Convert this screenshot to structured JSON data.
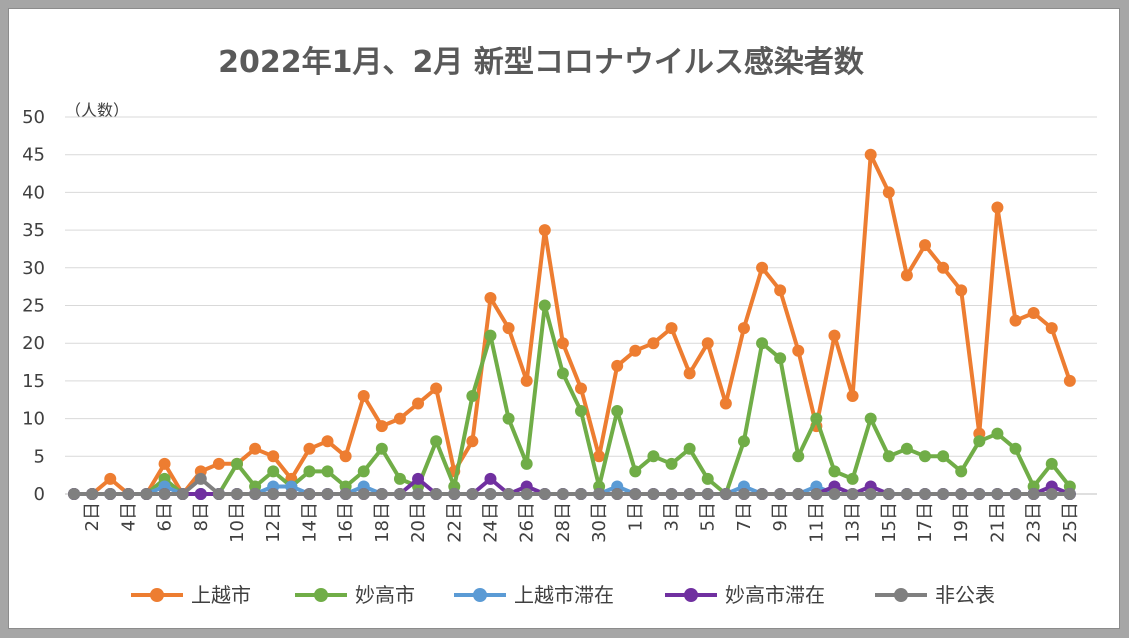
{
  "chart_data": {
    "type": "line",
    "title": "2022年1月、2月 新型コロナウイルス感染者数",
    "ylabel": "（人数）",
    "ylim": [
      0,
      50
    ],
    "yticks": [
      0,
      5,
      10,
      15,
      20,
      25,
      30,
      35,
      40,
      45,
      50
    ],
    "grid": true,
    "legend_position": "bottom",
    "categories": [
      "1日",
      "2日",
      "3日",
      "4日",
      "5日",
      "6日",
      "7日",
      "8日",
      "9日",
      "10日",
      "11日",
      "12日",
      "13日",
      "14日",
      "15日",
      "16日",
      "17日",
      "18日",
      "19日",
      "20日",
      "21日",
      "22日",
      "23日",
      "24日",
      "25日",
      "26日",
      "27日",
      "28日",
      "29日",
      "30日",
      "31日",
      "1日",
      "2日",
      "3日",
      "4日",
      "5日",
      "6日",
      "7日",
      "8日",
      "9日",
      "10日",
      "11日",
      "12日",
      "13日",
      "14日",
      "15日",
      "16日",
      "17日",
      "18日",
      "19日",
      "20日",
      "21日",
      "22日",
      "23日",
      "24日",
      "25日",
      "26日"
    ],
    "x_tick_labels": [
      "2日",
      "4日",
      "6日",
      "8日",
      "10日",
      "12日",
      "14日",
      "16日",
      "18日",
      "20日",
      "22日",
      "24日",
      "26日",
      "28日",
      "30日",
      "1日",
      "3日",
      "5日",
      "7日",
      "9日",
      "11日",
      "13日",
      "15日",
      "17日",
      "19日",
      "21日",
      "23日",
      "25日"
    ],
    "series": [
      {
        "name": "上越市",
        "color": "#ed7d31",
        "values": [
          0,
          0,
          2,
          0,
          0,
          4,
          0,
          3,
          4,
          4,
          6,
          5,
          2,
          6,
          7,
          5,
          13,
          9,
          10,
          12,
          14,
          3,
          7,
          26,
          22,
          15,
          35,
          20,
          14,
          5,
          17,
          19,
          20,
          22,
          16,
          20,
          12,
          22,
          30,
          27,
          19,
          9,
          21,
          13,
          45,
          40,
          29,
          33,
          30,
          27,
          8,
          38,
          23,
          24,
          22,
          15,
          null
        ]
      },
      {
        "name": "妙高市",
        "color": "#70ad47",
        "values": [
          0,
          0,
          0,
          0,
          0,
          2,
          0,
          0,
          0,
          4,
          1,
          3,
          1,
          3,
          3,
          1,
          3,
          6,
          2,
          1,
          7,
          1,
          13,
          21,
          10,
          4,
          25,
          16,
          11,
          1,
          11,
          3,
          5,
          4,
          6,
          2,
          0,
          7,
          20,
          18,
          5,
          10,
          3,
          2,
          10,
          5,
          6,
          5,
          5,
          3,
          7,
          8,
          6,
          1,
          4,
          1,
          null
        ]
      },
      {
        "name": "上越市滞在",
        "color": "#5b9bd5",
        "values": [
          0,
          0,
          0,
          0,
          0,
          1,
          0,
          0,
          0,
          0,
          0,
          1,
          1,
          0,
          0,
          0,
          1,
          0,
          0,
          0,
          0,
          0,
          0,
          0,
          0,
          0,
          0,
          0,
          0,
          0,
          1,
          0,
          0,
          0,
          0,
          0,
          0,
          1,
          0,
          0,
          0,
          1,
          0,
          0,
          0,
          0,
          0,
          0,
          0,
          0,
          0,
          0,
          0,
          0,
          0,
          0,
          null
        ]
      },
      {
        "name": "妙高市滞在",
        "color": "#7030a0",
        "values": [
          0,
          0,
          0,
          0,
          0,
          0,
          0,
          0,
          0,
          0,
          0,
          0,
          0,
          0,
          0,
          0,
          0,
          0,
          0,
          2,
          0,
          0,
          0,
          2,
          0,
          1,
          0,
          0,
          0,
          0,
          0,
          0,
          0,
          0,
          0,
          0,
          0,
          0,
          0,
          0,
          0,
          0,
          1,
          0,
          1,
          0,
          0,
          0,
          0,
          0,
          0,
          0,
          0,
          0,
          1,
          0,
          null
        ]
      },
      {
        "name": "非公表",
        "color": "#7f7f7f",
        "values": [
          0,
          0,
          0,
          0,
          0,
          0,
          0,
          2,
          0,
          0,
          0,
          0,
          0,
          0,
          0,
          0,
          0,
          0,
          0,
          0,
          0,
          0,
          0,
          0,
          0,
          0,
          0,
          0,
          0,
          0,
          0,
          0,
          0,
          0,
          0,
          0,
          0,
          0,
          0,
          0,
          0,
          0,
          0,
          0,
          0,
          0,
          0,
          0,
          0,
          0,
          0,
          0,
          0,
          0,
          0,
          0,
          null
        ]
      }
    ]
  }
}
